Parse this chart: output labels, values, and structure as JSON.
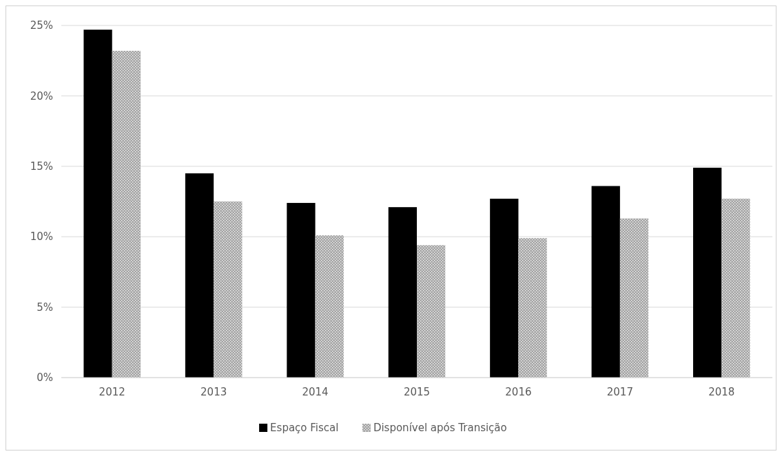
{
  "chart_data": {
    "type": "bar",
    "categories": [
      "2012",
      "2013",
      "2014",
      "2015",
      "2016",
      "2017",
      "2018"
    ],
    "series": [
      {
        "name": "Espaço Fiscal",
        "color": "#000000",
        "values": [
          24.7,
          14.5,
          12.4,
          12.1,
          12.7,
          13.6,
          14.9
        ]
      },
      {
        "name": "Disponível após Transição",
        "color": "#a6a6a6",
        "values": [
          23.2,
          12.5,
          10.1,
          9.4,
          9.9,
          11.3,
          12.7
        ]
      }
    ],
    "ylim": [
      0,
      25
    ],
    "yticks": [
      {
        "value": 0,
        "label": "0%"
      },
      {
        "value": 5,
        "label": "5%"
      },
      {
        "value": 10,
        "label": "10%"
      },
      {
        "value": 15,
        "label": "15%"
      },
      {
        "value": 20,
        "label": "20%"
      },
      {
        "value": 25,
        "label": "25%"
      }
    ],
    "grid": "y",
    "legend": "bottom"
  }
}
